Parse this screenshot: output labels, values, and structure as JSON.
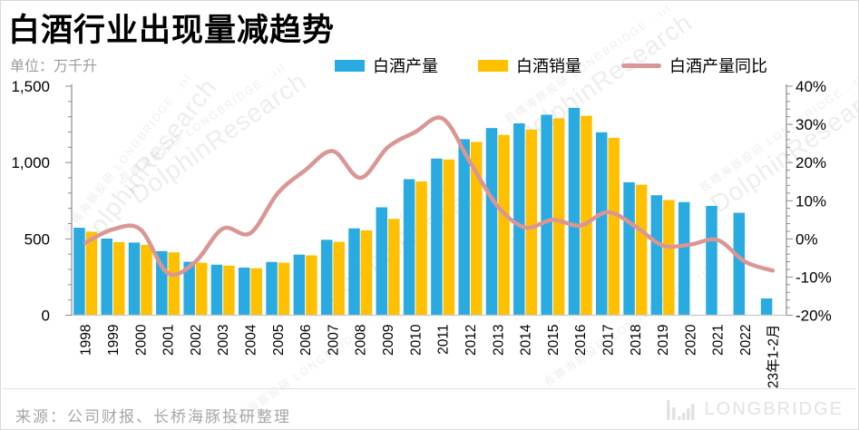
{
  "title": "白酒行业出现量减趋势",
  "unit_label": "单位：万千升",
  "source": "来源：公司财报、长桥海豚投研整理",
  "brand": {
    "logo_text": "LONGBRIDGE"
  },
  "watermark": {
    "small": "長橋海豚投研 LONGBRIDGE ..ııl",
    "big": "DolphinResearch"
  },
  "chart_data": {
    "type": "bar",
    "title": "白酒行业出现量减趋势",
    "unit": "万千升",
    "legend_position": "top",
    "grid": false,
    "categories": [
      "1998",
      "1999",
      "2000",
      "2001",
      "2002",
      "2003",
      "2004",
      "2005",
      "2006",
      "2007",
      "2008",
      "2009",
      "2010",
      "2011",
      "2012",
      "2013",
      "2014",
      "2015",
      "2016",
      "2017",
      "2018",
      "2019",
      "2020",
      "2021",
      "2022",
      "23年1-2月"
    ],
    "series": [
      {
        "name": "白酒产量",
        "type": "bar",
        "axis": "left",
        "color": "#29ABE2",
        "values": [
          573,
          502,
          476,
          420,
          350,
          331,
          312,
          349,
          397,
          494,
          569,
          707,
          891,
          1026,
          1153,
          1226,
          1257,
          1313,
          1358,
          1198,
          871,
          786,
          741,
          716,
          671,
          110
        ]
      },
      {
        "name": "白酒销量",
        "type": "bar",
        "axis": "left",
        "color": "#FFC000",
        "values": [
          546,
          479,
          461,
          412,
          344,
          325,
          308,
          344,
          392,
          481,
          556,
          631,
          876,
          1020,
          1135,
          1181,
          1216,
          1289,
          1306,
          1162,
          855,
          755,
          null,
          null,
          null,
          null
        ]
      },
      {
        "name": "白酒产量同比",
        "type": "line",
        "axis": "right",
        "unit": "%",
        "color": "#D99694",
        "values": [
          -1,
          2.5,
          2.5,
          -9,
          -6,
          2.7,
          1.5,
          12,
          18,
          23,
          16,
          24,
          28,
          31.5,
          20,
          8.5,
          3,
          5,
          3.5,
          7,
          3.3,
          -1.7,
          -1.5,
          -0.3,
          -6,
          -8.3
        ]
      }
    ],
    "left_axis": {
      "min": 0,
      "max": 1500,
      "minor_step": 100,
      "major_step": 500,
      "tick_values": [
        0,
        500,
        1000,
        1500
      ],
      "tick_labels": [
        "0",
        "500",
        "1,000",
        "1,500"
      ]
    },
    "right_axis": {
      "min": -20,
      "max": 40,
      "minor_step": 2,
      "major_step": 10,
      "tick_values": [
        40,
        30,
        20,
        10,
        0,
        -10,
        -20
      ],
      "tick_labels": [
        "40%",
        "30%",
        "20%",
        "10%",
        "0%",
        "-10%",
        "-20%"
      ]
    }
  }
}
